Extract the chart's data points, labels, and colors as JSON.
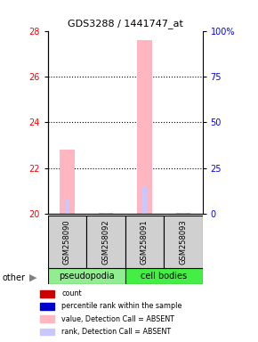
{
  "title": "GDS3288 / 1441747_at",
  "samples": [
    "GSM258090",
    "GSM258092",
    "GSM258091",
    "GSM258093"
  ],
  "ylim_left": [
    20,
    28
  ],
  "ylim_right": [
    0,
    100
  ],
  "yticks_left": [
    20,
    22,
    24,
    26,
    28
  ],
  "yticks_right": [
    0,
    25,
    50,
    75,
    100
  ],
  "yticklabels_right": [
    "0",
    "25",
    "50",
    "75",
    "100%"
  ],
  "bar_values": [
    22.8,
    20.05,
    27.6,
    20.05
  ],
  "bar_colors": [
    "#FFB6C1",
    "#FFB6C1",
    "#FFB6C1",
    "#FFB6C1"
  ],
  "rank_values": [
    8,
    0.5,
    15,
    0.5
  ],
  "rank_bar_colors": [
    "#C8C8FF",
    "#C8C8FF",
    "#C8C8FF",
    "#C8C8FF"
  ],
  "bar_base": 20,
  "bar_width": 0.38,
  "rank_bar_width": 0.12,
  "groups": [
    {
      "label": "pseudopodia",
      "color": "#90EE90",
      "start": 0,
      "end": 1
    },
    {
      "label": "cell bodies",
      "color": "#44EE44",
      "start": 2,
      "end": 3
    }
  ],
  "legend_items": [
    {
      "label": "count",
      "color": "#CC0000"
    },
    {
      "label": "percentile rank within the sample",
      "color": "#0000CC"
    },
    {
      "label": "value, Detection Call = ABSENT",
      "color": "#FFB6C1"
    },
    {
      "label": "rank, Detection Call = ABSENT",
      "color": "#C8C8FF"
    }
  ],
  "other_label": "other",
  "grid_lines": [
    22,
    24,
    26
  ],
  "x_positions": [
    0,
    1,
    2,
    3
  ]
}
